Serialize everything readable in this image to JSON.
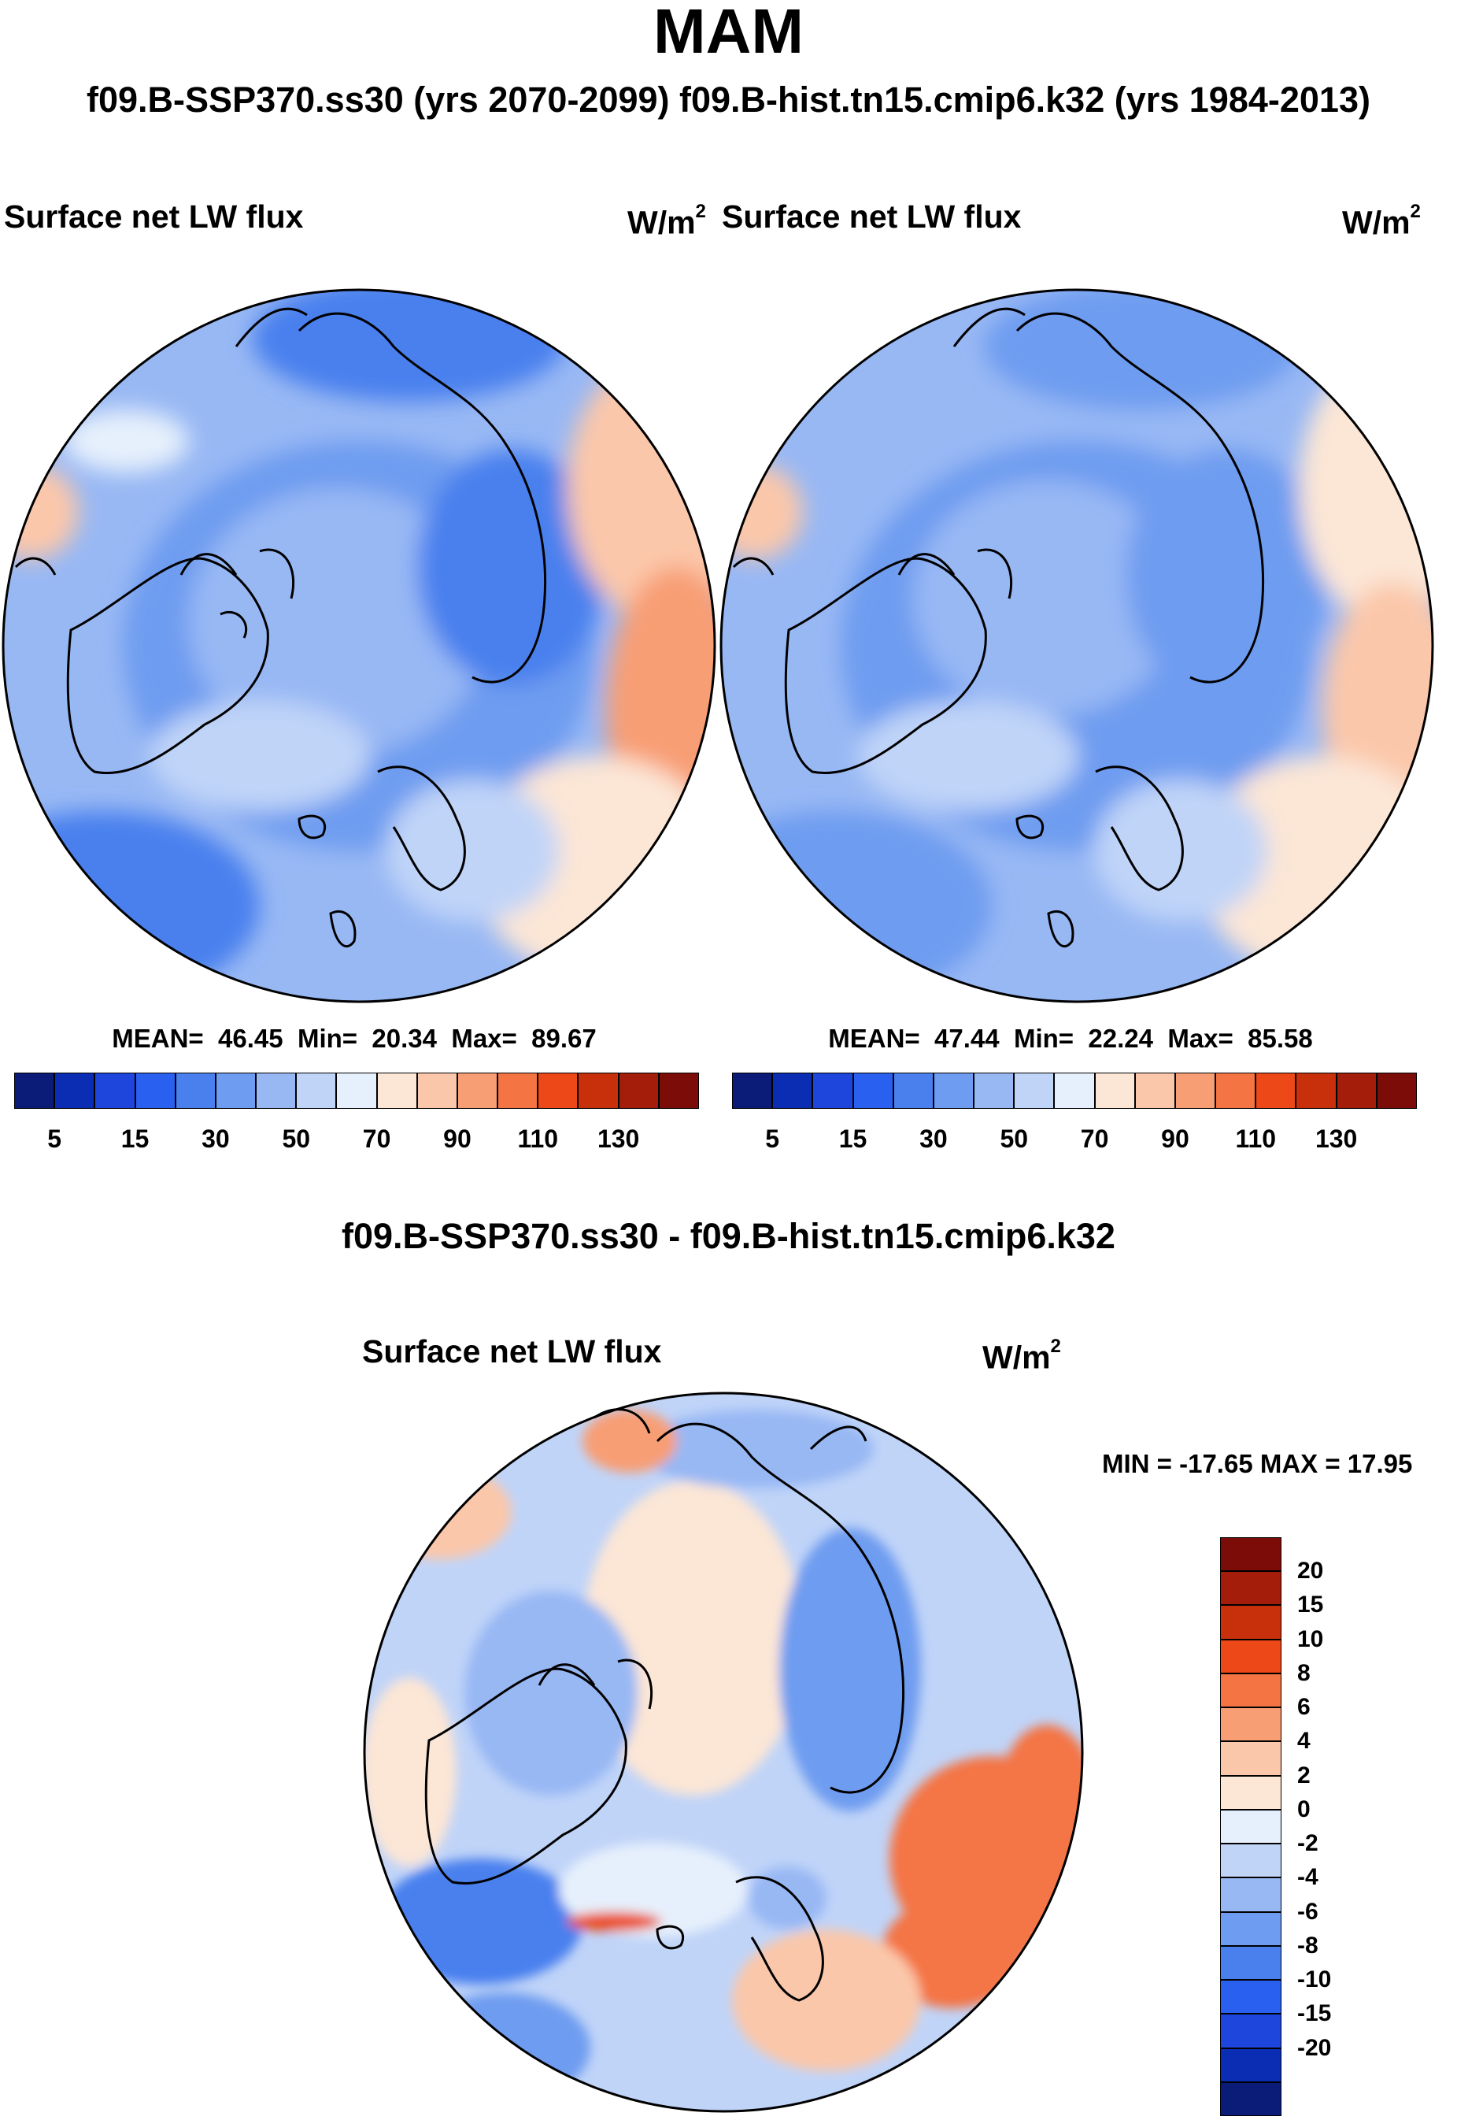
{
  "title": "MAM",
  "subtitle": "f09.B-SSP370.ss30 (yrs 2070-2099)  f09.B-hist.tn15.cmip6.k32 (yrs 1984-2013)",
  "panels": {
    "left": {
      "field": "Surface net LW flux",
      "units": "W/m",
      "units_exp": "2",
      "stats": {
        "mean_label": "MEAN=",
        "mean": "46.45",
        "min_label": "Min=",
        "min": "20.34",
        "max_label": "Max=",
        "max": "89.67"
      }
    },
    "right": {
      "field": "Surface net LW flux",
      "units": "W/m",
      "units_exp": "2",
      "stats": {
        "mean_label": "MEAN=",
        "mean": "47.44",
        "min_label": "Min=",
        "min": "22.24",
        "max_label": "Max=",
        "max": "85.58"
      }
    },
    "diff": {
      "title": "f09.B-SSP370.ss30 - f09.B-hist.tn15.cmip6.k32",
      "field": "Surface net LW flux",
      "units": "W/m",
      "units_exp": "2",
      "minmax": "MIN = -17.65 MAX =  17.95"
    }
  },
  "colorbars": {
    "abs_colors": [
      "#0a1c78",
      "#0a2db4",
      "#1e46dc",
      "#2a60f0",
      "#4a80ee",
      "#6e9cf0",
      "#98b8f4",
      "#c0d4f8",
      "#e6f0fc",
      "#fce6d6",
      "#fbc7aa",
      "#f89e74",
      "#f47444",
      "#ec4818",
      "#c8300c",
      "#a41c0a",
      "#7c0c08"
    ],
    "abs_ticks": [
      "5",
      "15",
      "30",
      "50",
      "70",
      "90",
      "110",
      "130"
    ],
    "diff_colors": [
      "#0a1c78",
      "#0a2db4",
      "#1e46dc",
      "#2a60f0",
      "#4a80ee",
      "#6e9cf0",
      "#98b8f4",
      "#c0d4f8",
      "#e6f0fc",
      "#fce6d6",
      "#fbc7aa",
      "#f89e74",
      "#f47444",
      "#ec4818",
      "#c8300c",
      "#a41c0a",
      "#7c0c08"
    ],
    "diff_ticks": [
      "20",
      "15",
      "10",
      "8",
      "6",
      "4",
      "2",
      "0",
      "-2",
      "-4",
      "-6",
      "-8",
      "-10",
      "-15",
      "-20"
    ]
  }
}
